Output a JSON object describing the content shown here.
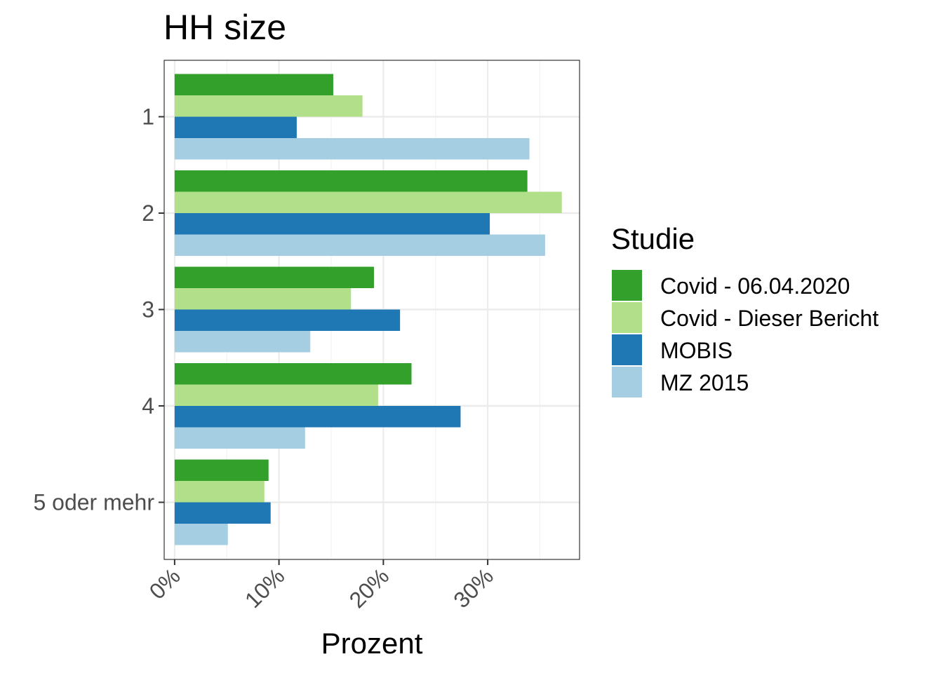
{
  "chart_data": {
    "type": "bar",
    "orientation": "horizontal",
    "title": "HH size",
    "xlabel": "Prozent",
    "ylabel": "",
    "categories": [
      "1",
      "2",
      "3",
      "4",
      "5 oder mehr"
    ],
    "xlim": [
      -0.01,
      0.388
    ],
    "x_ticks": [
      0,
      0.1,
      0.2,
      0.3
    ],
    "x_tick_labels": [
      "0%",
      "10%",
      "20%",
      "30%"
    ],
    "grid": true,
    "legend": {
      "title": "Studie",
      "position": "right"
    },
    "series": [
      {
        "name": "Covid - 06.04.2020",
        "color": "#33a02c",
        "values": [
          0.152,
          0.338,
          0.191,
          0.227,
          0.09
        ]
      },
      {
        "name": "Covid - Dieser Bericht",
        "color": "#b2df8a",
        "values": [
          0.18,
          0.371,
          0.169,
          0.195,
          0.086
        ]
      },
      {
        "name": "MOBIS",
        "color": "#1f78b4",
        "values": [
          0.117,
          0.302,
          0.216,
          0.274,
          0.092
        ]
      },
      {
        "name": "MZ 2015",
        "color": "#a6cee3",
        "values": [
          0.34,
          0.355,
          0.13,
          0.125,
          0.051
        ]
      }
    ]
  }
}
